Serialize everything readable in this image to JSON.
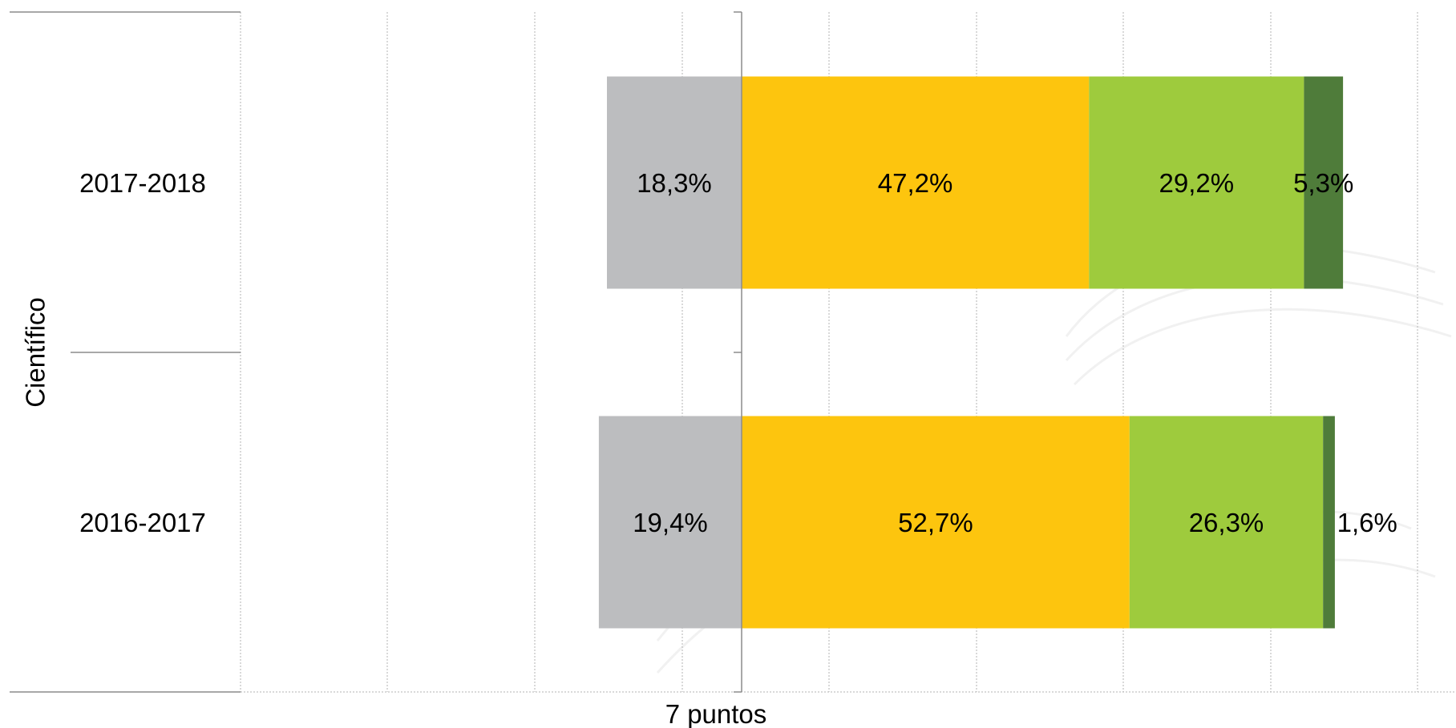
{
  "chart_data": {
    "type": "bar",
    "orientation": "horizontal",
    "stacked": "diverging",
    "group_label": "Científico",
    "reference_label": "7 puntos",
    "grid": true,
    "categories": [
      "2017-2018",
      "2016-2017"
    ],
    "series": [
      {
        "color": "#bcbdbf",
        "side": "negative",
        "values": [
          18.3,
          19.4
        ],
        "labels": [
          "18,3%",
          "19,4%"
        ]
      },
      {
        "color": "#fdc50e",
        "side": "positive",
        "values": [
          47.2,
          52.7
        ],
        "labels": [
          "47,2%",
          "52,7%"
        ]
      },
      {
        "color": "#9ecb3d",
        "side": "positive",
        "values": [
          29.2,
          26.3
        ],
        "labels": [
          "29,2%",
          "26,3%"
        ]
      },
      {
        "color": "#4f7c3a",
        "side": "positive",
        "values": [
          5.3,
          1.6
        ],
        "labels": [
          "5,3%",
          "1,6%"
        ]
      }
    ]
  }
}
